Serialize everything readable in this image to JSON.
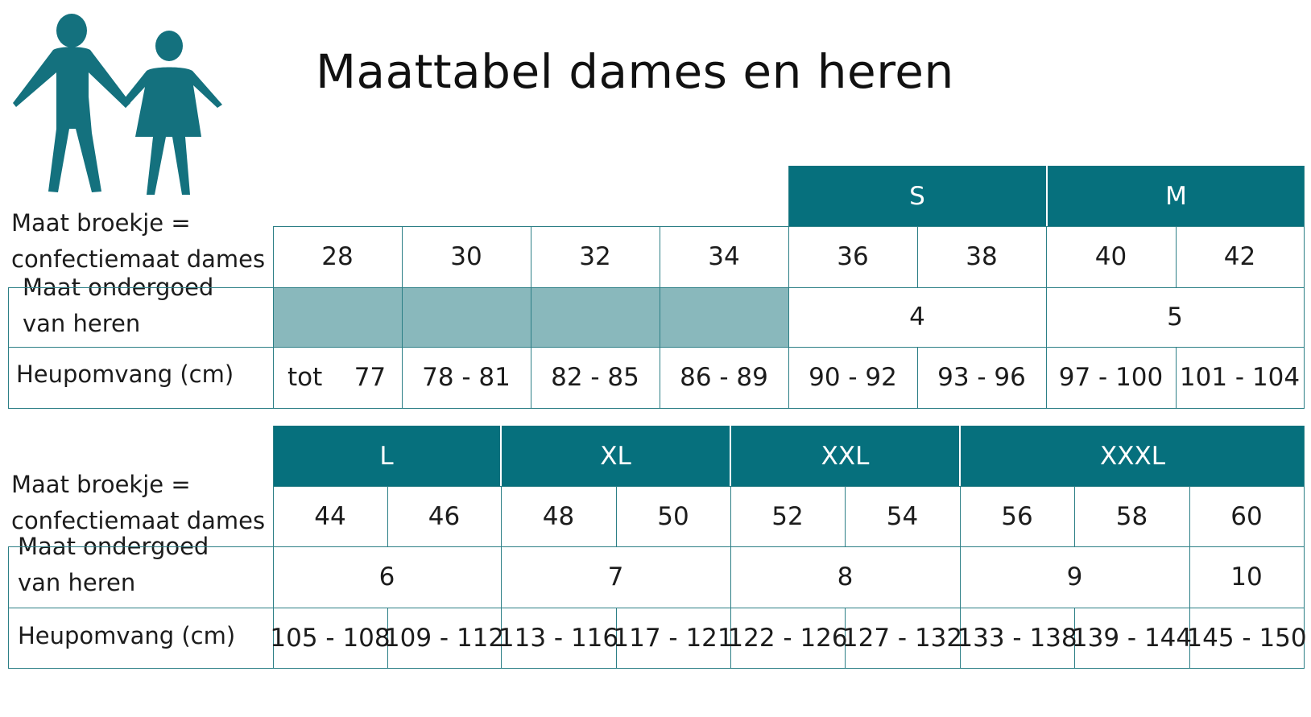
{
  "title": "Maattabel dames en heren",
  "colors": {
    "header_fill": "#06707d",
    "empty_fill": "#89b8bc",
    "grid_line": "#2c7f86",
    "logo": "#14717e"
  },
  "logo": {
    "icon": "man-and-woman-holding-hands-icon"
  },
  "table1": {
    "row_labels": {
      "size": [
        "Maat broekje =",
        "confectiemaat dames"
      ],
      "underwear": [
        "Maat ondergoed",
        "van heren"
      ],
      "hip": "Heupomvang (cm)"
    },
    "headers": [
      "S",
      "M"
    ],
    "sizes": [
      "28",
      "30",
      "32",
      "34",
      "36",
      "38",
      "40",
      "42"
    ],
    "underwear": [
      "4",
      "5"
    ],
    "hip": [
      "tot    77",
      "78 - 81",
      "82 - 85",
      "86 - 89",
      "90 - 92",
      "93 - 96",
      "97 - 100",
      "101 - 104"
    ]
  },
  "table2": {
    "row_labels": {
      "size": [
        "Maat broekje =",
        "confectiemaat dames"
      ],
      "underwear": [
        "Maat ondergoed",
        "van heren"
      ],
      "hip": "Heupomvang (cm)"
    },
    "headers": [
      "L",
      "XL",
      "XXL",
      "XXXL"
    ],
    "sizes": [
      "44",
      "46",
      "48",
      "50",
      "52",
      "54",
      "56",
      "58",
      "60"
    ],
    "underwear": [
      "6",
      "7",
      "8",
      "9",
      "10"
    ],
    "hip": [
      "105 - 108",
      "109 - 112",
      "113 - 116",
      "117 - 121",
      "122 - 126",
      "127 - 132",
      "133 - 138",
      "139 - 144",
      "145 - 150"
    ]
  }
}
